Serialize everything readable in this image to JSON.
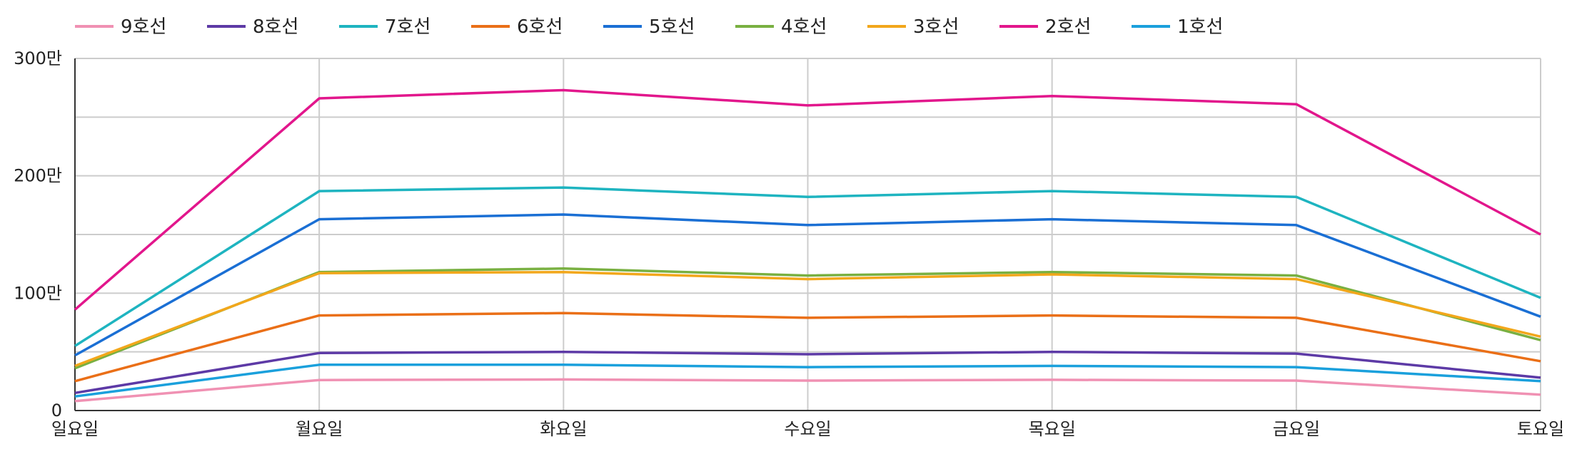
{
  "chart_data": {
    "type": "line",
    "categories": [
      "일요일",
      "월요일",
      "화요일",
      "수요일",
      "목요일",
      "금요일",
      "토요일"
    ],
    "y_ticks": [
      {
        "value": 0,
        "label": "0"
      },
      {
        "value": 1000000,
        "label": "100만"
      },
      {
        "value": 2000000,
        "label": "200만"
      },
      {
        "value": 3000000,
        "label": "300만"
      }
    ],
    "ylim": [
      0,
      3000000
    ],
    "grid": true,
    "legend_position": "top-left",
    "series": [
      {
        "name": "9호선",
        "color": "#f091b3",
        "values": [
          80000,
          260000,
          265000,
          255000,
          262000,
          255000,
          135000
        ]
      },
      {
        "name": "8호선",
        "color": "#5d3aa6",
        "values": [
          150000,
          490000,
          500000,
          480000,
          500000,
          485000,
          280000
        ]
      },
      {
        "name": "7호선",
        "color": "#1eb4c0",
        "values": [
          550000,
          1870000,
          1900000,
          1820000,
          1870000,
          1820000,
          960000
        ]
      },
      {
        "name": "6호선",
        "color": "#ea6f17",
        "values": [
          250000,
          810000,
          830000,
          790000,
          810000,
          790000,
          420000
        ]
      },
      {
        "name": "5호선",
        "color": "#1a6fd4",
        "values": [
          470000,
          1630000,
          1670000,
          1580000,
          1630000,
          1580000,
          800000
        ]
      },
      {
        "name": "4호선",
        "color": "#79b041",
        "values": [
          360000,
          1180000,
          1210000,
          1150000,
          1180000,
          1150000,
          600000
        ]
      },
      {
        "name": "3호선",
        "color": "#f2a71b",
        "values": [
          380000,
          1170000,
          1180000,
          1120000,
          1160000,
          1120000,
          630000
        ]
      },
      {
        "name": "2호선",
        "color": "#e2168c",
        "values": [
          860000,
          2660000,
          2730000,
          2600000,
          2680000,
          2610000,
          1500000
        ]
      },
      {
        "name": "1호선",
        "color": "#1aa0dc",
        "values": [
          120000,
          390000,
          390000,
          370000,
          380000,
          370000,
          250000
        ]
      }
    ]
  }
}
